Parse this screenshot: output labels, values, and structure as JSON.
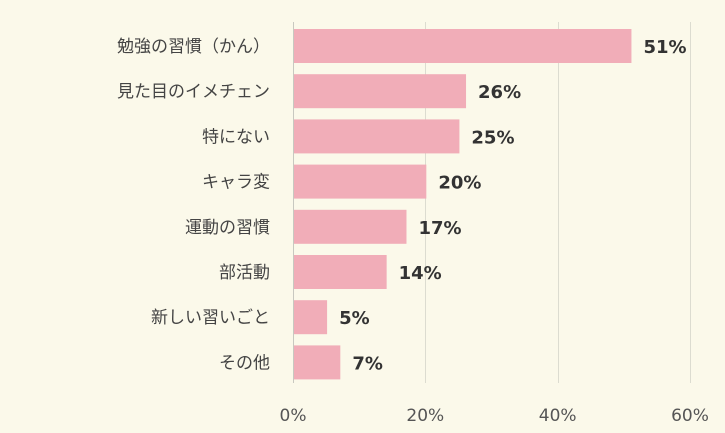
{
  "chart_data": {
    "type": "bar",
    "orientation": "horizontal",
    "categories": [
      "勉強の習慣（かん）",
      "見た目のイメチェン",
      "特にない",
      "キャラ変",
      "運動の習慣",
      "部活動",
      "新しい習いごと",
      "その他"
    ],
    "values": [
      51,
      26,
      25,
      20,
      17,
      14,
      5,
      7
    ],
    "value_labels": [
      "51%",
      "26%",
      "25%",
      "20%",
      "17%",
      "14%",
      "5%",
      "7%"
    ],
    "x_ticks": [
      0,
      20,
      40,
      60
    ],
    "x_tick_labels": [
      "0%",
      "20%",
      "40%",
      "60%"
    ],
    "xlim": [
      0,
      60
    ],
    "grid": true,
    "legend": "none",
    "title": "",
    "xlabel": "",
    "ylabel": ""
  },
  "colors": {
    "background": "#fbf9ea",
    "bar": "#f1adb8",
    "value_text": "#333333",
    "category_text": "#444444",
    "grid": "#dcdcd0"
  }
}
